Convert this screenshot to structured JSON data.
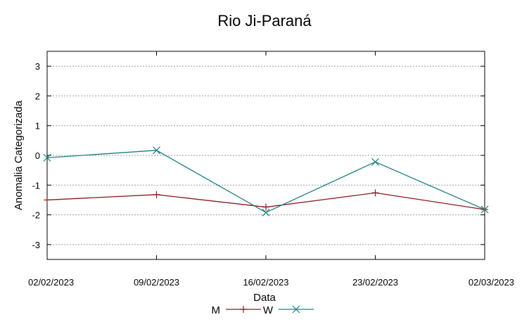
{
  "chart_data": {
    "type": "line",
    "title": "Rio Ji-Paraná",
    "xlabel": "Data",
    "ylabel": "Anomalia Categorizada",
    "categories": [
      "02/02/2023",
      "09/02/2023",
      "16/02/2023",
      "23/02/2023",
      "02/03/2023"
    ],
    "yticks": [
      3,
      2,
      1,
      0,
      -1,
      -2,
      -3
    ],
    "ylim": [
      -3.5,
      3.5
    ],
    "grid": true,
    "legend_position": "bottom-center",
    "series": [
      {
        "name": "M",
        "color": "#8b1a1a",
        "marker": "plus",
        "values": [
          -1.5,
          -1.32,
          -1.74,
          -1.26,
          -1.82
        ]
      },
      {
        "name": "W",
        "color": "#1a7f80",
        "marker": "x",
        "values": [
          -0.08,
          0.17,
          -1.92,
          -0.22,
          -1.82
        ]
      }
    ]
  }
}
